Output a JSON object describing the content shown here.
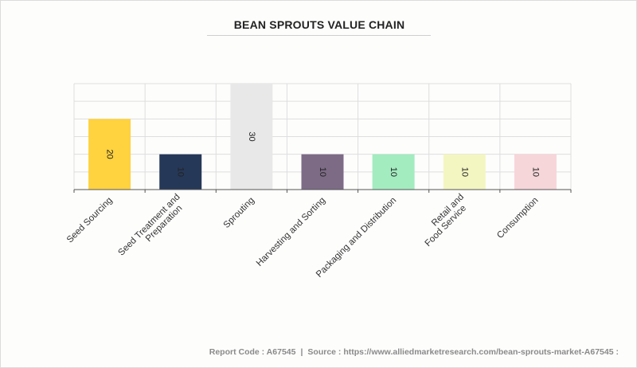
{
  "chart_data": {
    "type": "bar",
    "title": "BEAN SPROUTS VALUE CHAIN",
    "categories": [
      "Seed Sourcing",
      "Seed Treatment and Preparation",
      "Sprouting",
      "Harvesting and Sorting",
      "Packaging and Distribution",
      "Retail and Food Service",
      "Consumption"
    ],
    "values": [
      20,
      10,
      30,
      10,
      10,
      10,
      10
    ],
    "colors": [
      "#ffd23f",
      "#253858",
      "#e8e8e8",
      "#7d6b86",
      "#a3ecc0",
      "#f4f6c2",
      "#f6d6d9"
    ],
    "ylim": [
      0,
      30
    ],
    "xlabel": "",
    "ylabel": "",
    "grid": true
  },
  "footer": {
    "report_code": "Report Code : A67545",
    "source": "Source : https://www.alliedmarketresearch.com/bean-sprouts-market-A67545 :"
  }
}
